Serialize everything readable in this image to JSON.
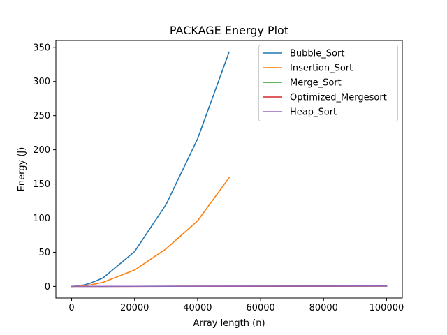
{
  "chart_data": {
    "type": "line",
    "title": "PACKAGE Energy Plot",
    "xlabel": "Array length (n)",
    "ylabel": "Energy (J)",
    "xlim": [
      -5000,
      105000
    ],
    "ylim": [
      -17,
      360
    ],
    "xticks": [
      0,
      20000,
      40000,
      60000,
      80000,
      100000
    ],
    "xtick_labels": [
      "0",
      "20000",
      "40000",
      "60000",
      "80000",
      "100000"
    ],
    "yticks": [
      0,
      50,
      100,
      150,
      200,
      250,
      300,
      350
    ],
    "ytick_labels": [
      "0",
      "50",
      "100",
      "150",
      "200",
      "250",
      "300",
      "350"
    ],
    "grid": false,
    "legend_position": "top-right",
    "series": [
      {
        "name": "Bubble_Sort",
        "color": "#1f77b4",
        "x": [
          0,
          2000,
          4000,
          6000,
          8000,
          10000,
          20000,
          30000,
          40000,
          50000
        ],
        "y": [
          0,
          0.6,
          2.2,
          4.9,
          8.5,
          12.5,
          51,
          120,
          216,
          343
        ]
      },
      {
        "name": "Insertion_Sort",
        "color": "#ff7f0e",
        "x": [
          0,
          2000,
          4000,
          6000,
          8000,
          10000,
          20000,
          30000,
          40000,
          50000
        ],
        "y": [
          0,
          0.3,
          1.0,
          2.3,
          4.0,
          6.0,
          24,
          55,
          96,
          159
        ]
      },
      {
        "name": "Merge_Sort",
        "color": "#2ca02c",
        "x": [
          0,
          10000,
          20000,
          30000,
          40000,
          50000,
          60000,
          70000,
          80000,
          90000,
          100000
        ],
        "y": [
          0,
          0.05,
          0.1,
          0.15,
          0.2,
          0.25,
          0.3,
          0.35,
          0.4,
          0.45,
          0.5
        ]
      },
      {
        "name": "Optimized_Mergesort",
        "color": "#d62728",
        "x": [
          0,
          10000,
          20000,
          30000,
          40000,
          50000,
          60000,
          70000,
          80000,
          90000,
          100000
        ],
        "y": [
          0,
          0.04,
          0.08,
          0.12,
          0.16,
          0.2,
          0.24,
          0.28,
          0.32,
          0.36,
          0.4
        ]
      },
      {
        "name": "Heap_Sort",
        "color": "#9467bd",
        "x": [
          0,
          10000,
          20000,
          30000,
          40000,
          50000,
          60000,
          70000,
          80000,
          90000,
          100000
        ],
        "y": [
          0,
          0.06,
          0.12,
          0.18,
          0.24,
          0.3,
          0.36,
          0.42,
          0.48,
          0.54,
          0.6
        ]
      }
    ]
  }
}
